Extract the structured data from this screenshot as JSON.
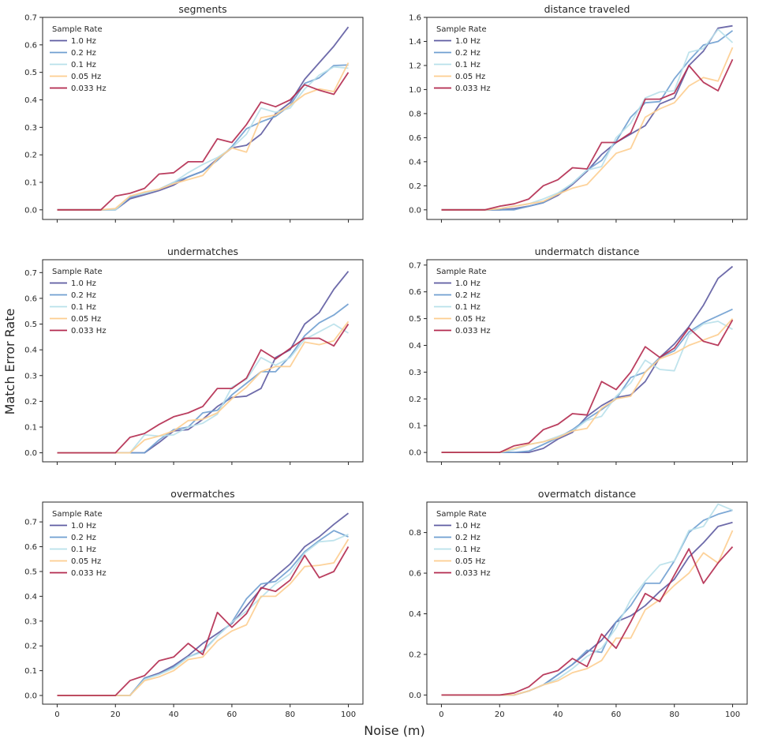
{
  "figure": {
    "xlabel": "Noise (m)",
    "ylabel": "Match Error Rate"
  },
  "legend": {
    "title": "Sample Rate",
    "placement": "top-left"
  },
  "series_colors": [
    "#5e5ba1",
    "#6f9fd0",
    "#b8e0ea",
    "#fdcd8f",
    "#b3294e"
  ],
  "chart_data": [
    {
      "type": "line",
      "title": "segments",
      "xlim": [
        -5,
        105
      ],
      "ylim": [
        -0.035,
        0.7
      ],
      "xticks": [
        0,
        20,
        40,
        60,
        80,
        100
      ],
      "yticks": [
        0.0,
        0.1,
        0.2,
        0.3,
        0.4,
        0.5,
        0.6,
        0.7
      ],
      "show_xtick_labels": false,
      "x": [
        0,
        5,
        10,
        15,
        20,
        25,
        30,
        35,
        40,
        45,
        50,
        55,
        60,
        65,
        70,
        75,
        80,
        85,
        90,
        95,
        100
      ],
      "series": [
        {
          "name": "1.0 Hz",
          "values": [
            0,
            0,
            0,
            0,
            0,
            0.04,
            0.055,
            0.07,
            0.09,
            0.12,
            0.14,
            0.185,
            0.225,
            0.235,
            0.275,
            0.35,
            0.39,
            0.475,
            0.535,
            0.595,
            0.665
          ]
        },
        {
          "name": "0.2 Hz",
          "values": [
            0,
            0,
            0,
            0,
            0,
            0.045,
            0.06,
            0.075,
            0.1,
            0.12,
            0.14,
            0.18,
            0.23,
            0.295,
            0.32,
            0.34,
            0.38,
            0.46,
            0.48,
            0.525,
            0.527
          ]
        },
        {
          "name": "0.1 Hz",
          "values": [
            0,
            0,
            0,
            0,
            0,
            0.05,
            0.06,
            0.075,
            0.1,
            0.135,
            0.165,
            0.19,
            0.225,
            0.275,
            0.37,
            0.355,
            0.37,
            0.44,
            0.49,
            0.52,
            0.515
          ]
        },
        {
          "name": "0.05 Hz",
          "values": [
            0,
            0,
            0,
            0,
            0.005,
            0.05,
            0.065,
            0.075,
            0.095,
            0.11,
            0.125,
            0.185,
            0.225,
            0.21,
            0.335,
            0.345,
            0.38,
            0.42,
            0.44,
            0.43,
            0.535
          ]
        },
        {
          "name": "0.033 Hz",
          "values": [
            0,
            0,
            0,
            0,
            0.05,
            0.06,
            0.078,
            0.13,
            0.135,
            0.175,
            0.175,
            0.258,
            0.245,
            0.31,
            0.392,
            0.375,
            0.4,
            0.455,
            0.435,
            0.42,
            0.5
          ]
        }
      ]
    },
    {
      "type": "line",
      "title": "distance traveled",
      "xlim": [
        -5,
        105
      ],
      "ylim": [
        -0.08,
        1.6
      ],
      "xticks": [
        0,
        20,
        40,
        60,
        80,
        100
      ],
      "yticks": [
        0.0,
        0.2,
        0.4,
        0.6,
        0.8,
        1.0,
        1.2,
        1.4,
        1.6
      ],
      "show_xtick_labels": false,
      "x": [
        0,
        5,
        10,
        15,
        20,
        25,
        30,
        35,
        40,
        45,
        50,
        55,
        60,
        65,
        70,
        75,
        80,
        85,
        90,
        95,
        100
      ],
      "series": [
        {
          "name": "1.0 Hz",
          "values": [
            0,
            0,
            0,
            0,
            0,
            0.01,
            0.03,
            0.06,
            0.12,
            0.21,
            0.32,
            0.46,
            0.56,
            0.63,
            0.7,
            0.88,
            0.93,
            1.2,
            1.32,
            1.51,
            1.53
          ]
        },
        {
          "name": "0.2 Hz",
          "values": [
            0,
            0,
            0,
            0,
            0,
            0.0,
            0.03,
            0.06,
            0.13,
            0.22,
            0.33,
            0.41,
            0.57,
            0.77,
            0.89,
            0.9,
            1.09,
            1.24,
            1.37,
            1.4,
            1.49
          ]
        },
        {
          "name": "0.1 Hz",
          "values": [
            0,
            0,
            0,
            0,
            0.01,
            0.03,
            0.05,
            0.09,
            0.14,
            0.22,
            0.33,
            0.36,
            0.6,
            0.72,
            0.93,
            0.98,
            0.99,
            1.31,
            1.34,
            1.5,
            1.39
          ]
        },
        {
          "name": "0.05 Hz",
          "values": [
            0,
            0,
            0,
            0,
            0.01,
            0.03,
            0.05,
            0.07,
            0.13,
            0.18,
            0.21,
            0.34,
            0.47,
            0.51,
            0.77,
            0.84,
            0.89,
            1.03,
            1.1,
            1.07,
            1.35
          ]
        },
        {
          "name": "0.033 Hz",
          "values": [
            0,
            0,
            0,
            0,
            0.03,
            0.05,
            0.09,
            0.2,
            0.25,
            0.35,
            0.34,
            0.56,
            0.56,
            0.64,
            0.92,
            0.92,
            0.97,
            1.2,
            1.06,
            0.99,
            1.25
          ]
        }
      ]
    },
    {
      "type": "line",
      "title": "undermatches",
      "xlim": [
        -5,
        105
      ],
      "ylim": [
        -0.035,
        0.75
      ],
      "xticks": [
        0,
        20,
        40,
        60,
        80,
        100
      ],
      "yticks": [
        0.0,
        0.1,
        0.2,
        0.3,
        0.4,
        0.5,
        0.6,
        0.7
      ],
      "show_xtick_labels": false,
      "x": [
        0,
        5,
        10,
        15,
        20,
        25,
        30,
        35,
        40,
        45,
        50,
        55,
        60,
        65,
        70,
        75,
        80,
        85,
        90,
        95,
        100
      ],
      "series": [
        {
          "name": "1.0 Hz",
          "values": [
            0,
            0,
            0,
            0,
            0,
            0,
            0,
            0.04,
            0.085,
            0.09,
            0.13,
            0.18,
            0.215,
            0.22,
            0.25,
            0.37,
            0.4,
            0.5,
            0.545,
            0.635,
            0.705
          ]
        },
        {
          "name": "0.2 Hz",
          "values": [
            0,
            0,
            0,
            0,
            0,
            0,
            0,
            0.05,
            0.09,
            0.1,
            0.155,
            0.165,
            0.225,
            0.27,
            0.315,
            0.315,
            0.375,
            0.455,
            0.505,
            0.535,
            0.578
          ]
        },
        {
          "name": "0.1 Hz",
          "values": [
            0,
            0,
            0,
            0,
            0,
            0,
            0.07,
            0.065,
            0.07,
            0.1,
            0.115,
            0.15,
            0.255,
            0.285,
            0.37,
            0.34,
            0.37,
            0.44,
            0.47,
            0.5,
            0.465
          ]
        },
        {
          "name": "0.05 Hz",
          "values": [
            0,
            0,
            0,
            0,
            0,
            0,
            0.05,
            0.065,
            0.085,
            0.125,
            0.13,
            0.155,
            0.21,
            0.255,
            0.315,
            0.335,
            0.335,
            0.43,
            0.42,
            0.435,
            0.51
          ]
        },
        {
          "name": "0.033 Hz",
          "values": [
            0,
            0,
            0,
            0,
            0,
            0.06,
            0.075,
            0.11,
            0.14,
            0.155,
            0.18,
            0.25,
            0.25,
            0.29,
            0.4,
            0.365,
            0.405,
            0.445,
            0.445,
            0.415,
            0.5
          ]
        }
      ]
    },
    {
      "type": "line",
      "title": "undermatch distance",
      "xlim": [
        -5,
        105
      ],
      "ylim": [
        -0.035,
        0.72
      ],
      "xticks": [
        0,
        20,
        40,
        60,
        80,
        100
      ],
      "yticks": [
        0.0,
        0.1,
        0.2,
        0.3,
        0.4,
        0.5,
        0.6,
        0.7
      ],
      "show_xtick_labels": false,
      "x": [
        0,
        5,
        10,
        15,
        20,
        25,
        30,
        35,
        40,
        45,
        50,
        55,
        60,
        65,
        70,
        75,
        80,
        85,
        90,
        95,
        100
      ],
      "series": [
        {
          "name": "1.0 Hz",
          "values": [
            0,
            0,
            0,
            0,
            0,
            0,
            0,
            0.015,
            0.05,
            0.075,
            0.135,
            0.175,
            0.205,
            0.215,
            0.265,
            0.355,
            0.405,
            0.47,
            0.55,
            0.65,
            0.695
          ]
        },
        {
          "name": "0.2 Hz",
          "values": [
            0,
            0,
            0,
            0,
            0,
            0,
            0.005,
            0.03,
            0.055,
            0.085,
            0.125,
            0.16,
            0.2,
            0.28,
            0.3,
            0.355,
            0.38,
            0.45,
            0.485,
            0.51,
            0.535
          ]
        },
        {
          "name": "0.1 Hz",
          "values": [
            0,
            0,
            0,
            0,
            0,
            0.01,
            0.03,
            0.04,
            0.06,
            0.08,
            0.12,
            0.135,
            0.21,
            0.26,
            0.345,
            0.31,
            0.305,
            0.44,
            0.48,
            0.49,
            0.46
          ]
        },
        {
          "name": "0.05 Hz",
          "values": [
            0,
            0,
            0,
            0,
            0,
            0.015,
            0.03,
            0.04,
            0.055,
            0.08,
            0.09,
            0.165,
            0.2,
            0.21,
            0.3,
            0.35,
            0.37,
            0.4,
            0.42,
            0.44,
            0.5
          ]
        },
        {
          "name": "0.033 Hz",
          "values": [
            0,
            0,
            0,
            0,
            0,
            0.025,
            0.035,
            0.085,
            0.105,
            0.145,
            0.14,
            0.265,
            0.235,
            0.3,
            0.395,
            0.355,
            0.39,
            0.465,
            0.415,
            0.4,
            0.495
          ]
        }
      ]
    },
    {
      "type": "line",
      "title": "overmatches",
      "xlim": [
        -5,
        105
      ],
      "ylim": [
        -0.035,
        0.78
      ],
      "xticks": [
        0,
        20,
        40,
        60,
        80,
        100
      ],
      "yticks": [
        0.0,
        0.1,
        0.2,
        0.3,
        0.4,
        0.5,
        0.6,
        0.7
      ],
      "show_xtick_labels": true,
      "x": [
        0,
        5,
        10,
        15,
        20,
        25,
        30,
        35,
        40,
        45,
        50,
        55,
        60,
        65,
        70,
        75,
        80,
        85,
        90,
        95,
        100
      ],
      "series": [
        {
          "name": "1.0 Hz",
          "values": [
            0,
            0,
            0,
            0,
            0,
            0,
            0.07,
            0.09,
            0.12,
            0.16,
            0.21,
            0.25,
            0.29,
            0.36,
            0.43,
            0.48,
            0.53,
            0.6,
            0.64,
            0.69,
            0.735
          ]
        },
        {
          "name": "0.2 Hz",
          "values": [
            0,
            0,
            0,
            0,
            0,
            0,
            0.07,
            0.085,
            0.115,
            0.155,
            0.18,
            0.24,
            0.295,
            0.39,
            0.45,
            0.46,
            0.51,
            0.58,
            0.625,
            0.665,
            0.64
          ]
        },
        {
          "name": "0.1 Hz",
          "values": [
            0,
            0,
            0,
            0,
            0,
            0,
            0.065,
            0.085,
            0.11,
            0.155,
            0.175,
            0.24,
            0.295,
            0.34,
            0.395,
            0.45,
            0.49,
            0.575,
            0.62,
            0.625,
            0.65
          ]
        },
        {
          "name": "0.05 Hz",
          "values": [
            0,
            0,
            0,
            0,
            0,
            0,
            0.06,
            0.075,
            0.1,
            0.145,
            0.155,
            0.22,
            0.26,
            0.285,
            0.4,
            0.4,
            0.45,
            0.52,
            0.525,
            0.535,
            0.63
          ]
        },
        {
          "name": "0.033 Hz",
          "values": [
            0,
            0,
            0,
            0,
            0,
            0.06,
            0.08,
            0.14,
            0.155,
            0.21,
            0.165,
            0.335,
            0.275,
            0.33,
            0.435,
            0.42,
            0.465,
            0.565,
            0.475,
            0.5,
            0.6
          ]
        }
      ]
    },
    {
      "type": "line",
      "title": "overmatch distance",
      "xlim": [
        -5,
        105
      ],
      "ylim": [
        -0.045,
        0.95
      ],
      "xticks": [
        0,
        20,
        40,
        60,
        80,
        100
      ],
      "yticks": [
        0.0,
        0.2,
        0.4,
        0.6,
        0.8
      ],
      "show_xtick_labels": true,
      "x": [
        0,
        5,
        10,
        15,
        20,
        25,
        30,
        35,
        40,
        45,
        50,
        55,
        60,
        65,
        70,
        75,
        80,
        85,
        90,
        95,
        100
      ],
      "series": [
        {
          "name": "1.0 Hz",
          "values": [
            0,
            0,
            0,
            0,
            0,
            0,
            0.02,
            0.05,
            0.1,
            0.15,
            0.21,
            0.27,
            0.36,
            0.39,
            0.44,
            0.51,
            0.57,
            0.68,
            0.75,
            0.83,
            0.85
          ]
        },
        {
          "name": "0.2 Hz",
          "values": [
            0,
            0,
            0,
            0,
            0,
            0,
            0.02,
            0.05,
            0.1,
            0.15,
            0.22,
            0.21,
            0.36,
            0.44,
            0.55,
            0.55,
            0.66,
            0.8,
            0.86,
            0.89,
            0.91
          ]
        },
        {
          "name": "0.1 Hz",
          "values": [
            0,
            0,
            0,
            0,
            0,
            0,
            0.02,
            0.05,
            0.08,
            0.13,
            0.19,
            0.23,
            0.33,
            0.47,
            0.56,
            0.64,
            0.66,
            0.81,
            0.83,
            0.94,
            0.91
          ]
        },
        {
          "name": "0.05 Hz",
          "values": [
            0,
            0,
            0,
            0,
            0,
            0,
            0.02,
            0.05,
            0.07,
            0.11,
            0.13,
            0.17,
            0.28,
            0.28,
            0.42,
            0.47,
            0.54,
            0.6,
            0.7,
            0.65,
            0.81
          ]
        },
        {
          "name": "0.033 Hz",
          "values": [
            0,
            0,
            0,
            0,
            0,
            0.01,
            0.04,
            0.1,
            0.12,
            0.18,
            0.14,
            0.3,
            0.23,
            0.36,
            0.5,
            0.46,
            0.59,
            0.72,
            0.55,
            0.65,
            0.73
          ]
        }
      ]
    }
  ]
}
